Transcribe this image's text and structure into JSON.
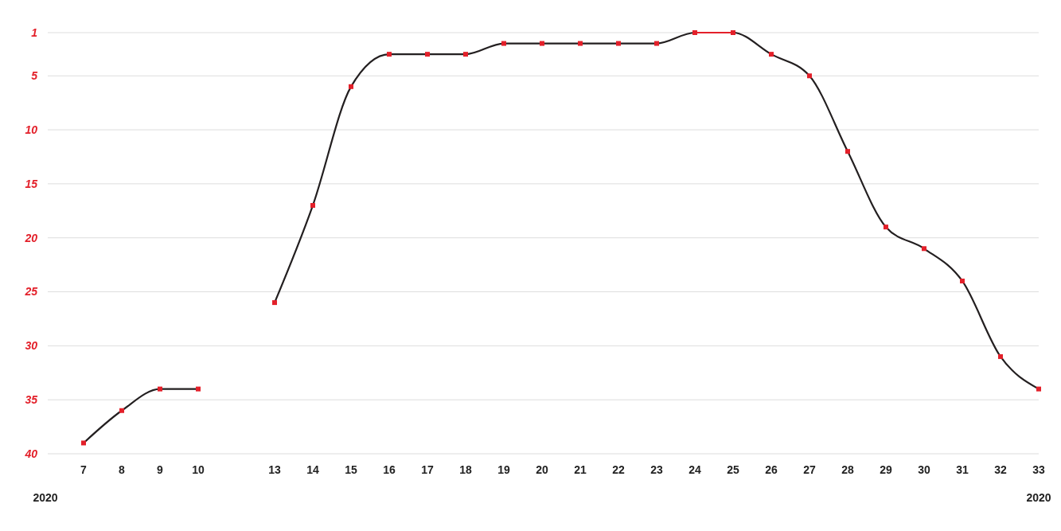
{
  "chart_data": {
    "type": "line",
    "categories": [
      "7",
      "8",
      "9",
      "10",
      null,
      "13",
      "14",
      "15",
      "16",
      "17",
      "18",
      "19",
      "20",
      "21",
      "22",
      "23",
      "24",
      "25",
      "26",
      "27",
      "28",
      "29",
      "30",
      "31",
      "32",
      "33"
    ],
    "series": [
      {
        "color": "#231f20",
        "values": [
          39,
          36,
          34,
          34,
          null,
          26,
          17,
          6,
          3,
          3,
          3,
          2,
          2,
          2,
          2,
          2,
          1,
          1,
          3,
          5,
          12,
          19,
          21,
          24,
          31,
          34
        ]
      },
      {
        "color": "#e3202a",
        "values": [
          null,
          null,
          null,
          null,
          null,
          null,
          null,
          null,
          null,
          null,
          null,
          null,
          null,
          null,
          null,
          null,
          1,
          1,
          null,
          null,
          null,
          null,
          null,
          null,
          null,
          null
        ]
      }
    ],
    "ylim": [
      40,
      1
    ],
    "yticks": [
      1,
      5,
      10,
      15,
      20,
      25,
      30,
      35,
      40
    ],
    "grid": "y",
    "marker": "square",
    "line_style": "solid",
    "annotations": [
      "2020",
      "2020"
    ]
  }
}
